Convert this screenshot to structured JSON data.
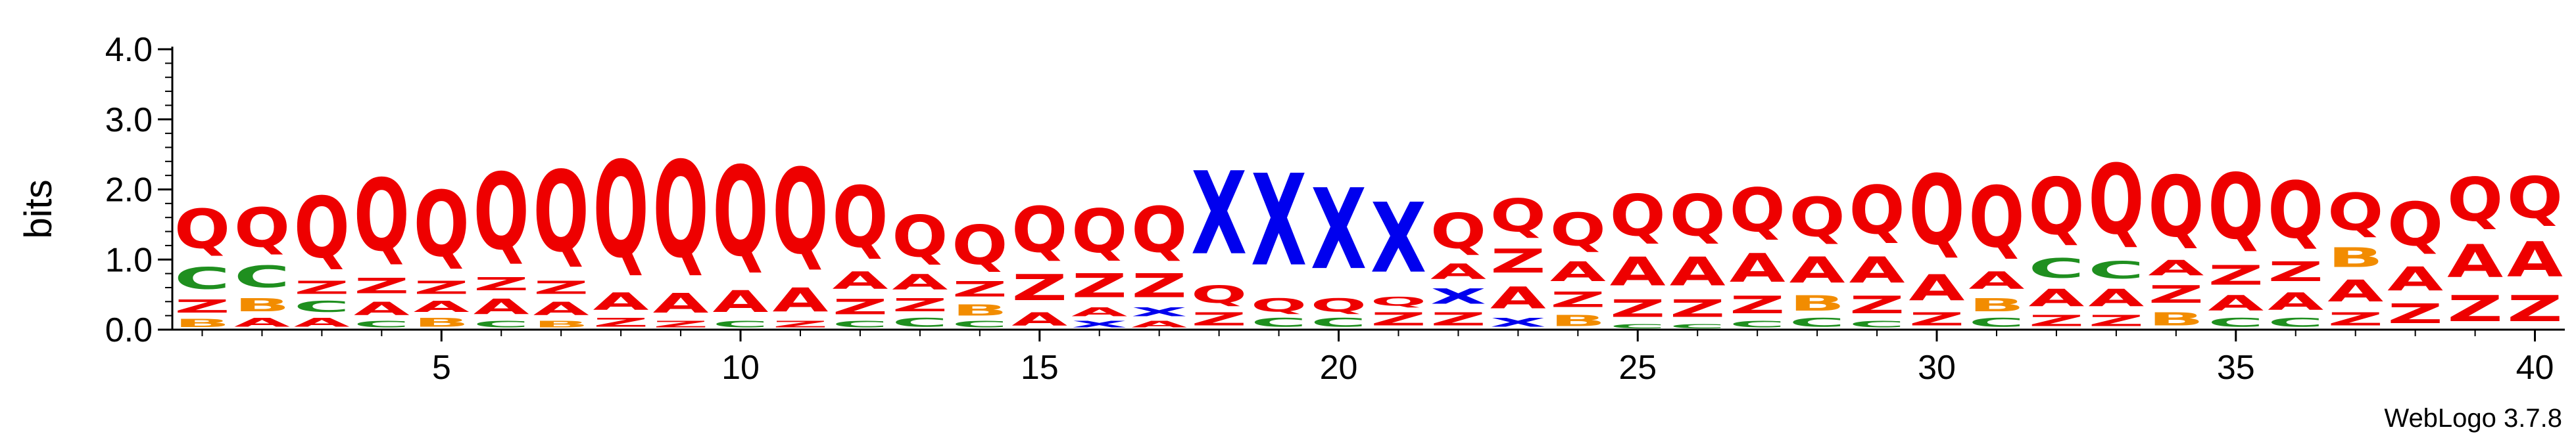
{
  "chart_data": {
    "type": "sequence-logo",
    "title": "",
    "ylabel": "bits",
    "xlabel": "",
    "ylim": [
      0,
      4.0
    ],
    "yticks": [
      "0.0",
      "1.0",
      "2.0",
      "3.0",
      "4.0"
    ],
    "x_tick_positions": [
      5,
      10,
      15,
      20,
      25,
      30,
      35,
      40
    ],
    "x_tick_labels": [
      "5",
      "10",
      "15",
      "20",
      "25",
      "30",
      "35",
      "40"
    ],
    "footer": "WebLogo 3.7.8",
    "colors": {
      "Q": "#ee0000",
      "A": "#ee0000",
      "Z": "#ee0000",
      "X": "#0000ee",
      "C": "#1f8f1f",
      "B": "#f28c00",
      "R": "#ee0000"
    },
    "columns": [
      {
        "position": 1,
        "stack": [
          {
            "letter": "B",
            "height": 0.18
          },
          {
            "letter": "Z",
            "height": 0.3
          },
          {
            "letter": "C",
            "height": 0.5
          },
          {
            "letter": "Q",
            "height": 0.9
          }
        ]
      },
      {
        "position": 2,
        "stack": [
          {
            "letter": "A",
            "height": 0.2
          },
          {
            "letter": "B",
            "height": 0.3
          },
          {
            "letter": "C",
            "height": 0.5
          },
          {
            "letter": "Q",
            "height": 0.9
          }
        ]
      },
      {
        "position": 3,
        "stack": [
          {
            "letter": "A",
            "height": 0.2
          },
          {
            "letter": "C",
            "height": 0.25
          },
          {
            "letter": "Z",
            "height": 0.3
          },
          {
            "letter": "Q",
            "height": 1.4
          }
        ]
      },
      {
        "position": 4,
        "stack": [
          {
            "letter": "C",
            "height": 0.15
          },
          {
            "letter": "A",
            "height": 0.3
          },
          {
            "letter": "Z",
            "height": 0.35
          },
          {
            "letter": "Q",
            "height": 1.65
          }
        ]
      },
      {
        "position": 5,
        "stack": [
          {
            "letter": "B",
            "height": 0.2
          },
          {
            "letter": "A",
            "height": 0.25
          },
          {
            "letter": "Z",
            "height": 0.3
          },
          {
            "letter": "Q",
            "height": 1.5
          }
        ]
      },
      {
        "position": 6,
        "stack": [
          {
            "letter": "C",
            "height": 0.15
          },
          {
            "letter": "A",
            "height": 0.35
          },
          {
            "letter": "Z",
            "height": 0.3
          },
          {
            "letter": "Q",
            "height": 1.75
          }
        ]
      },
      {
        "position": 7,
        "stack": [
          {
            "letter": "B",
            "height": 0.15
          },
          {
            "letter": "A",
            "height": 0.3
          },
          {
            "letter": "Z",
            "height": 0.3
          },
          {
            "letter": "Q",
            "height": 1.85
          }
        ]
      },
      {
        "position": 8,
        "stack": [
          {
            "letter": "Z",
            "height": 0.2
          },
          {
            "letter": "A",
            "height": 0.4
          },
          {
            "letter": "Q",
            "height": 2.2
          }
        ]
      },
      {
        "position": 9,
        "stack": [
          {
            "letter": "Z",
            "height": 0.15
          },
          {
            "letter": "A",
            "height": 0.45
          },
          {
            "letter": "Q",
            "height": 2.2
          }
        ]
      },
      {
        "position": 10,
        "stack": [
          {
            "letter": "C",
            "height": 0.15
          },
          {
            "letter": "A",
            "height": 0.5
          },
          {
            "letter": "Q",
            "height": 2.05
          }
        ]
      },
      {
        "position": 11,
        "stack": [
          {
            "letter": "Z",
            "height": 0.15
          },
          {
            "letter": "A",
            "height": 0.55
          },
          {
            "letter": "Q",
            "height": 1.95
          }
        ]
      },
      {
        "position": 12,
        "stack": [
          {
            "letter": "C",
            "height": 0.15
          },
          {
            "letter": "Z",
            "height": 0.35
          },
          {
            "letter": "A",
            "height": 0.4
          },
          {
            "letter": "Q",
            "height": 1.4
          }
        ]
      },
      {
        "position": 13,
        "stack": [
          {
            "letter": "C",
            "height": 0.2
          },
          {
            "letter": "Z",
            "height": 0.3
          },
          {
            "letter": "A",
            "height": 0.35
          },
          {
            "letter": "Q",
            "height": 0.95
          }
        ]
      },
      {
        "position": 14,
        "stack": [
          {
            "letter": "C",
            "height": 0.15
          },
          {
            "letter": "B",
            "height": 0.25
          },
          {
            "letter": "Z",
            "height": 0.35
          },
          {
            "letter": "Q",
            "height": 0.9
          }
        ]
      },
      {
        "position": 15,
        "stack": [
          {
            "letter": "A",
            "height": 0.3
          },
          {
            "letter": "Z",
            "height": 0.6
          },
          {
            "letter": "Q",
            "height": 1.05
          }
        ]
      },
      {
        "position": 16,
        "stack": [
          {
            "letter": "X",
            "height": 0.15
          },
          {
            "letter": "A",
            "height": 0.2
          },
          {
            "letter": "Z",
            "height": 0.55
          },
          {
            "letter": "Q",
            "height": 1.0
          }
        ]
      },
      {
        "position": 17,
        "stack": [
          {
            "letter": "A",
            "height": 0.15
          },
          {
            "letter": "X",
            "height": 0.2
          },
          {
            "letter": "Z",
            "height": 0.55
          },
          {
            "letter": "Q",
            "height": 1.05
          }
        ]
      },
      {
        "position": 18,
        "stack": [
          {
            "letter": "Z",
            "height": 0.3
          },
          {
            "letter": "Q",
            "height": 0.4
          },
          {
            "letter": "X",
            "height": 1.9
          }
        ]
      },
      {
        "position": 19,
        "stack": [
          {
            "letter": "C",
            "height": 0.2
          },
          {
            "letter": "Q",
            "height": 0.3
          },
          {
            "letter": "X",
            "height": 2.1
          }
        ]
      },
      {
        "position": 20,
        "stack": [
          {
            "letter": "C",
            "height": 0.2
          },
          {
            "letter": "Q",
            "height": 0.3
          },
          {
            "letter": "X",
            "height": 1.85
          }
        ]
      },
      {
        "position": 21,
        "stack": [
          {
            "letter": "Z",
            "height": 0.3
          },
          {
            "letter": "Q",
            "height": 0.2
          },
          {
            "letter": "X",
            "height": 1.6
          }
        ]
      },
      {
        "position": 22,
        "stack": [
          {
            "letter": "Z",
            "height": 0.3
          },
          {
            "letter": "X",
            "height": 0.35
          },
          {
            "letter": "A",
            "height": 0.35
          },
          {
            "letter": "Q",
            "height": 0.8
          }
        ]
      },
      {
        "position": 23,
        "stack": [
          {
            "letter": "X",
            "height": 0.2
          },
          {
            "letter": "A",
            "height": 0.5
          },
          {
            "letter": "Z",
            "height": 0.55
          },
          {
            "letter": "Q",
            "height": 0.75
          }
        ]
      },
      {
        "position": 24,
        "stack": [
          {
            "letter": "B",
            "height": 0.25
          },
          {
            "letter": "Z",
            "height": 0.35
          },
          {
            "letter": "A",
            "height": 0.45
          },
          {
            "letter": "Q",
            "height": 0.75
          }
        ]
      },
      {
        "position": 25,
        "stack": [
          {
            "letter": "C",
            "height": 0.1
          },
          {
            "letter": "Z",
            "height": 0.4
          },
          {
            "letter": "A",
            "height": 0.65
          },
          {
            "letter": "Q",
            "height": 0.95
          }
        ]
      },
      {
        "position": 26,
        "stack": [
          {
            "letter": "C",
            "height": 0.1
          },
          {
            "letter": "Z",
            "height": 0.4
          },
          {
            "letter": "A",
            "height": 0.65
          },
          {
            "letter": "Q",
            "height": 0.95
          }
        ]
      },
      {
        "position": 27,
        "stack": [
          {
            "letter": "C",
            "height": 0.15
          },
          {
            "letter": "Z",
            "height": 0.4
          },
          {
            "letter": "A",
            "height": 0.65
          },
          {
            "letter": "Q",
            "height": 1.0
          }
        ]
      },
      {
        "position": 28,
        "stack": [
          {
            "letter": "C",
            "height": 0.2
          },
          {
            "letter": "B",
            "height": 0.35
          },
          {
            "letter": "A",
            "height": 0.6
          },
          {
            "letter": "Q",
            "height": 0.9
          }
        ]
      },
      {
        "position": 29,
        "stack": [
          {
            "letter": "C",
            "height": 0.15
          },
          {
            "letter": "Z",
            "height": 0.4
          },
          {
            "letter": "A",
            "height": 0.6
          },
          {
            "letter": "Q",
            "height": 1.1
          }
        ]
      },
      {
        "position": 30,
        "stack": [
          {
            "letter": "Z",
            "height": 0.3
          },
          {
            "letter": "A",
            "height": 0.6
          },
          {
            "letter": "Q",
            "height": 1.6
          }
        ]
      },
      {
        "position": 31,
        "stack": [
          {
            "letter": "C",
            "height": 0.2
          },
          {
            "letter": "B",
            "height": 0.3
          },
          {
            "letter": "A",
            "height": 0.4
          },
          {
            "letter": "Q",
            "height": 1.4
          }
        ]
      },
      {
        "position": 32,
        "stack": [
          {
            "letter": "Z",
            "height": 0.25
          },
          {
            "letter": "A",
            "height": 0.4
          },
          {
            "letter": "C",
            "height": 0.45
          },
          {
            "letter": "Q",
            "height": 1.3
          }
        ]
      },
      {
        "position": 33,
        "stack": [
          {
            "letter": "Z",
            "height": 0.25
          },
          {
            "letter": "A",
            "height": 0.4
          },
          {
            "letter": "C",
            "height": 0.4
          },
          {
            "letter": "Q",
            "height": 1.6
          }
        ]
      },
      {
        "position": 34,
        "stack": [
          {
            "letter": "B",
            "height": 0.3
          },
          {
            "letter": "Z",
            "height": 0.4
          },
          {
            "letter": "A",
            "height": 0.35
          },
          {
            "letter": "Q",
            "height": 1.4
          }
        ]
      },
      {
        "position": 35,
        "stack": [
          {
            "letter": "C",
            "height": 0.2
          },
          {
            "letter": "A",
            "height": 0.35
          },
          {
            "letter": "Z",
            "height": 0.45
          },
          {
            "letter": "Q",
            "height": 1.5
          }
        ]
      },
      {
        "position": 36,
        "stack": [
          {
            "letter": "C",
            "height": 0.2
          },
          {
            "letter": "A",
            "height": 0.4
          },
          {
            "letter": "Z",
            "height": 0.45
          },
          {
            "letter": "Q",
            "height": 1.3
          }
        ]
      },
      {
        "position": 37,
        "stack": [
          {
            "letter": "Z",
            "height": 0.3
          },
          {
            "letter": "A",
            "height": 0.5
          },
          {
            "letter": "B",
            "height": 0.45
          },
          {
            "letter": "Q",
            "height": 0.85
          }
        ]
      },
      {
        "position": 38,
        "stack": [
          {
            "letter": "Z",
            "height": 0.45
          },
          {
            "letter": "A",
            "height": 0.55
          },
          {
            "letter": "Q",
            "height": 1.0
          }
        ]
      },
      {
        "position": 39,
        "stack": [
          {
            "letter": "Z",
            "height": 0.6
          },
          {
            "letter": "A",
            "height": 0.75
          },
          {
            "letter": "Q",
            "height": 1.0
          }
        ]
      },
      {
        "position": 40,
        "stack": [
          {
            "letter": "Z",
            "height": 0.6
          },
          {
            "letter": "A",
            "height": 0.8
          },
          {
            "letter": "Q",
            "height": 0.95
          }
        ]
      }
    ]
  }
}
